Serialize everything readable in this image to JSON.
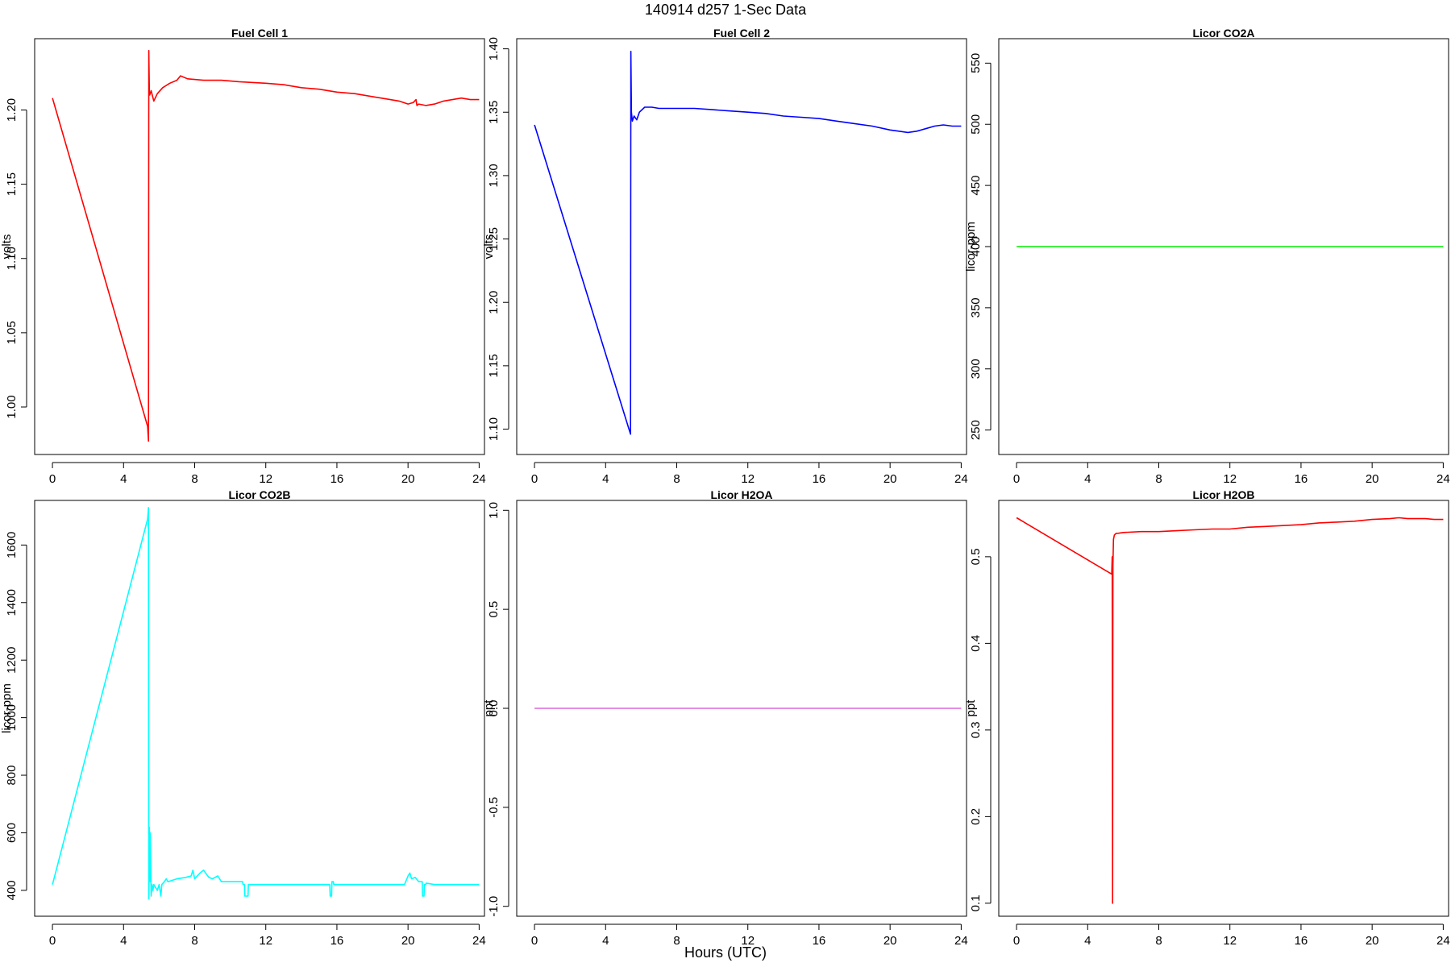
{
  "figure": {
    "title": "140914   d257   1-Sec Data",
    "xlabel": "Hours (UTC)"
  },
  "chart_data": [
    {
      "type": "line",
      "title": "Fuel Cell 1",
      "xlabel": "",
      "ylabel": "volts",
      "xlim": [
        -1,
        24.3
      ],
      "ylim": [
        0.968,
        1.248
      ],
      "xticks": [
        0,
        4,
        8,
        12,
        16,
        20,
        24
      ],
      "yticks": [
        1.0,
        1.05,
        1.1,
        1.15,
        1.2
      ],
      "ytick_labels": [
        "1.00",
        "1.05",
        "1.10",
        "1.15",
        "1.20"
      ],
      "color": "#ff0000",
      "series": [
        {
          "x": [
            0,
            5.35,
            5.4,
            5.42,
            5.45,
            5.47,
            5.55,
            5.7,
            5.9,
            6.2,
            6.6,
            7.0,
            7.2,
            7.6,
            8.5,
            9.5,
            10.5,
            12,
            13,
            14,
            15,
            16,
            17,
            18,
            19,
            19.5,
            20,
            20.3,
            20.45,
            20.5,
            20.6,
            21,
            21.5,
            22,
            22.5,
            23,
            23.5,
            24
          ],
          "y": [
            1.208,
            0.987,
            0.977,
            1.24,
            1.212,
            1.21,
            1.213,
            1.206,
            1.211,
            1.215,
            1.218,
            1.22,
            1.223,
            1.221,
            1.22,
            1.22,
            1.219,
            1.218,
            1.217,
            1.215,
            1.214,
            1.212,
            1.211,
            1.209,
            1.207,
            1.206,
            1.204,
            1.205,
            1.207,
            1.203,
            1.204,
            1.203,
            1.204,
            1.206,
            1.207,
            1.208,
            1.207,
            1.207
          ]
        }
      ]
    },
    {
      "type": "line",
      "title": "Fuel Cell 2",
      "xlabel": "",
      "ylabel": "volts",
      "xlim": [
        -1,
        24.3
      ],
      "ylim": [
        1.08,
        1.408
      ],
      "xticks": [
        0,
        4,
        8,
        12,
        16,
        20,
        24
      ],
      "yticks": [
        1.1,
        1.15,
        1.2,
        1.25,
        1.3,
        1.35,
        1.4
      ],
      "ytick_labels": [
        "1.10",
        "1.15",
        "1.20",
        "1.25",
        "1.30",
        "1.35",
        "1.40"
      ],
      "color": "#0000ff",
      "series": [
        {
          "x": [
            0,
            5.4,
            5.42,
            5.45,
            5.5,
            5.6,
            5.75,
            5.9,
            6.2,
            6.6,
            7,
            8,
            9,
            10,
            11,
            12,
            13,
            14,
            15,
            16,
            17,
            18,
            19,
            20,
            20.5,
            21,
            21.5,
            22,
            22.5,
            23,
            23.5,
            24
          ],
          "y": [
            1.34,
            1.096,
            1.398,
            1.35,
            1.343,
            1.347,
            1.344,
            1.35,
            1.354,
            1.354,
            1.353,
            1.353,
            1.353,
            1.352,
            1.351,
            1.35,
            1.349,
            1.347,
            1.346,
            1.345,
            1.343,
            1.341,
            1.339,
            1.336,
            1.335,
            1.334,
            1.335,
            1.337,
            1.339,
            1.34,
            1.339,
            1.339
          ]
        }
      ]
    },
    {
      "type": "line",
      "title": "Licor CO2A",
      "xlabel": "",
      "ylabel": "licor-ppm",
      "xlim": [
        -1,
        24.3
      ],
      "ylim": [
        230,
        570
      ],
      "xticks": [
        0,
        4,
        8,
        12,
        16,
        20,
        24
      ],
      "yticks": [
        250,
        300,
        350,
        400,
        450,
        500,
        550
      ],
      "ytick_labels": [
        "250",
        "300",
        "350",
        "400",
        "450",
        "500",
        "550"
      ],
      "color": "#00ee00",
      "series": [
        {
          "x": [
            0,
            24
          ],
          "y": [
            400,
            400
          ]
        }
      ]
    },
    {
      "type": "line",
      "title": "Licor CO2B",
      "xlabel": "",
      "ylabel": "licor-ppm",
      "xlim": [
        -1,
        24.3
      ],
      "ylim": [
        310,
        1755
      ],
      "xticks": [
        0,
        4,
        8,
        12,
        16,
        20,
        24
      ],
      "yticks": [
        400,
        600,
        800,
        1000,
        1200,
        1400,
        1600
      ],
      "ytick_labels": [
        "400",
        "600",
        "800",
        "1000",
        "1200",
        "1400",
        "1600"
      ],
      "color": "#00ffff",
      "series": [
        {
          "x": [
            0,
            5.35,
            5.4,
            5.42,
            5.45,
            5.48,
            5.5,
            5.55,
            5.6,
            5.65,
            5.7,
            5.9,
            6.0,
            6.1,
            6.15,
            6.3,
            6.4,
            6.5,
            7.0,
            7.5,
            7.8,
            7.9,
            8.0,
            8.3,
            8.5,
            8.8,
            9.0,
            9.3,
            9.5,
            10.7,
            10.72,
            10.8,
            10.82,
            11.0,
            11.02,
            15.6,
            15.62,
            15.7,
            15.72,
            15.8,
            15.82,
            16.0,
            19.8,
            20.0,
            20.1,
            20.2,
            20.4,
            20.6,
            20.8,
            20.82,
            20.9,
            20.92,
            21.0,
            21.02,
            21.5,
            24
          ],
          "y": [
            420,
            1690,
            1730,
            370,
            620,
            430,
            600,
            380,
            420,
            400,
            420,
            400,
            420,
            380,
            420,
            430,
            440,
            430,
            440,
            445,
            450,
            470,
            440,
            460,
            470,
            445,
            440,
            450,
            430,
            430,
            420,
            420,
            380,
            380,
            420,
            420,
            380,
            380,
            430,
            430,
            420,
            420,
            420,
            450,
            460,
            440,
            445,
            430,
            430,
            380,
            380,
            420,
            420,
            425,
            420,
            420
          ]
        }
      ]
    },
    {
      "type": "line",
      "title": "Licor H2OA",
      "xlabel": "",
      "ylabel": "ppt",
      "xlim": [
        -1,
        24.3
      ],
      "ylim": [
        -1.05,
        1.05
      ],
      "xticks": [
        0,
        4,
        8,
        12,
        16,
        20,
        24
      ],
      "yticks": [
        -1.0,
        -0.5,
        0.0,
        0.5,
        1.0
      ],
      "ytick_labels": [
        "-1.0",
        "-0.5",
        "0.0",
        "0.5",
        "1.0"
      ],
      "color": "#dd66dd",
      "series": [
        {
          "x": [
            0,
            24
          ],
          "y": [
            0,
            0
          ]
        }
      ]
    },
    {
      "type": "line",
      "title": "Licor H2OB",
      "xlabel": "",
      "ylabel": "ppt",
      "xlim": [
        -1,
        24.3
      ],
      "ylim": [
        0.085,
        0.565
      ],
      "xticks": [
        0,
        4,
        8,
        12,
        16,
        20,
        24
      ],
      "yticks": [
        0.1,
        0.2,
        0.3,
        0.4,
        0.5
      ],
      "ytick_labels": [
        "0.1",
        "0.2",
        "0.3",
        "0.4",
        "0.5"
      ],
      "color": "#ff0000",
      "series": [
        {
          "x": [
            0,
            5.35,
            5.38,
            5.4,
            5.42,
            5.45,
            5.5,
            5.6,
            5.7,
            6,
            7,
            8,
            9,
            10,
            11,
            12,
            13,
            14,
            15,
            16,
            17,
            18,
            19,
            20,
            21,
            21.5,
            22,
            23,
            23.5,
            24
          ],
          "y": [
            0.545,
            0.48,
            0.5,
            0.1,
            0.49,
            0.52,
            0.525,
            0.527,
            0.527,
            0.528,
            0.529,
            0.529,
            0.53,
            0.531,
            0.532,
            0.532,
            0.534,
            0.535,
            0.536,
            0.537,
            0.539,
            0.54,
            0.541,
            0.543,
            0.544,
            0.545,
            0.544,
            0.544,
            0.543,
            0.543
          ]
        }
      ]
    }
  ]
}
